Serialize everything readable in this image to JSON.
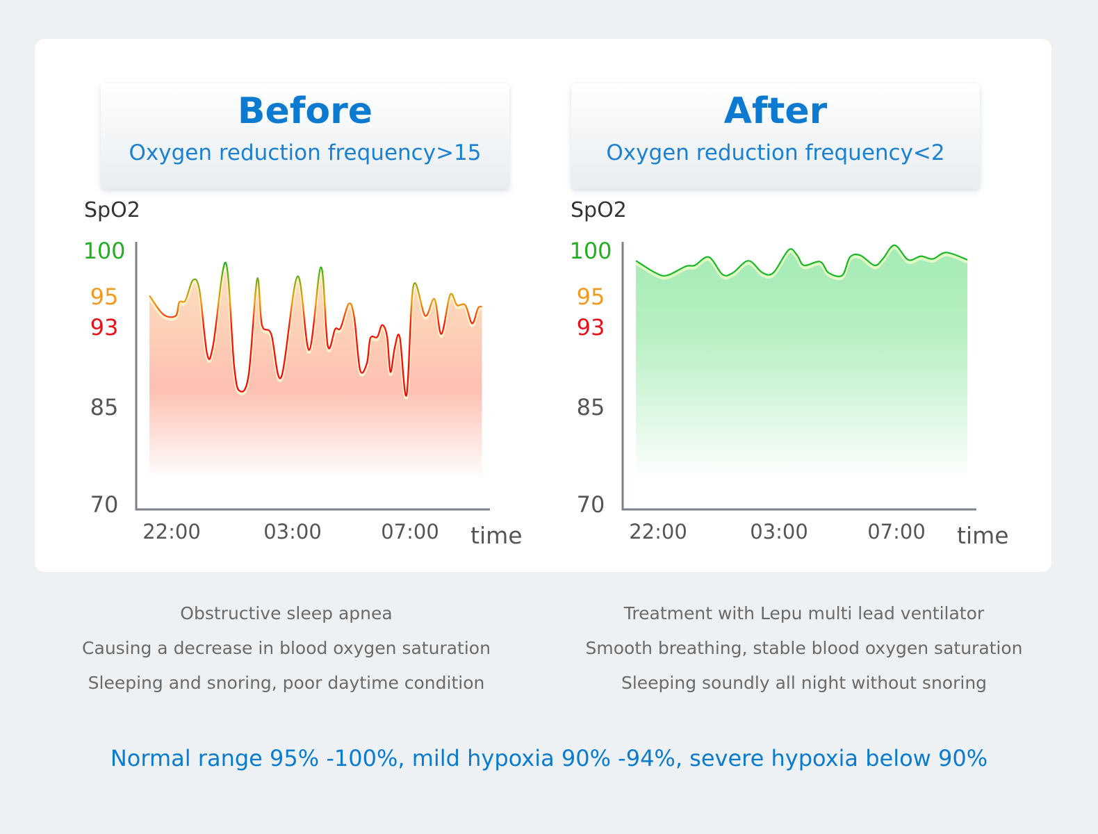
{
  "colors": {
    "accent": "#0b7ad0",
    "normal": "#22b022",
    "mild": "#f39a1e",
    "severe": "#e8111a",
    "axis": "#7c8189"
  },
  "descriptions": {
    "before": [
      "Obstructive sleep apnea",
      "Causing a decrease in blood oxygen saturation",
      "Sleeping and snoring, poor daytime condition"
    ],
    "after": [
      "Treatment with Lepu multi lead ventilator",
      "Smooth breathing, stable blood oxygen saturation",
      "Sleeping soundly all night without snoring"
    ]
  },
  "footnote": "Normal range 95% -100%, mild hypoxia 90% -94%, severe hypoxia below 90%",
  "chart_data": [
    {
      "type": "area",
      "title": "Before",
      "subtitle": "Oxygen reduction frequency>15",
      "ylabel": "SpO2",
      "xlabel": "time",
      "yticks": [
        100,
        95,
        93,
        85,
        70
      ],
      "ytick_colors": [
        "#22b022",
        "#f39a1e",
        "#e8111a",
        "#555555",
        "#555555"
      ],
      "ylim": [
        70,
        100
      ],
      "xticks": [
        "22:00",
        "03:00",
        "07:00"
      ],
      "grid": false,
      "series": [
        {
          "color": "gradient green-orange-red",
          "points": [
            [
              "21:05",
              95.2
            ],
            [
              "21:39",
              93.9
            ],
            [
              "22:10",
              93.8
            ],
            [
              "22:19",
              94.7
            ],
            [
              "22:34",
              94.8
            ],
            [
              "22:53",
              96.9
            ],
            [
              "23:09",
              95.8
            ],
            [
              "23:28",
              90.4
            ],
            [
              "23:43",
              91.3
            ],
            [
              "00:14",
              98.8
            ],
            [
              "00:35",
              89.2
            ],
            [
              "00:49",
              86.7
            ],
            [
              "01:11",
              88.3
            ],
            [
              "01:32",
              97.0
            ],
            [
              "01:44",
              93.2
            ],
            [
              "02:07",
              92.4
            ],
            [
              "02:32",
              88.1
            ],
            [
              "03:10",
              97.3
            ],
            [
              "03:34",
              90.8
            ],
            [
              "03:58",
              98.3
            ],
            [
              "04:12",
              91.2
            ],
            [
              "04:27",
              92.9
            ],
            [
              "04:38",
              93.0
            ],
            [
              "04:55",
              94.6
            ],
            [
              "05:06",
              93.7
            ],
            [
              "05:18",
              88.8
            ],
            [
              "05:32",
              89.5
            ],
            [
              "05:39",
              92.0
            ],
            [
              "05:53",
              92.1
            ],
            [
              "06:03",
              93.2
            ],
            [
              "06:13",
              92.2
            ],
            [
              "06:20",
              88.6
            ],
            [
              "06:29",
              91.1
            ],
            [
              "06:39",
              92.1
            ],
            [
              "06:53",
              86.3
            ],
            [
              "07:07",
              96.3
            ],
            [
              "07:31",
              93.8
            ],
            [
              "07:50",
              94.9
            ],
            [
              "08:04",
              92.4
            ],
            [
              "08:22",
              95.3
            ],
            [
              "08:36",
              94.5
            ],
            [
              "08:53",
              94.5
            ],
            [
              "09:07",
              93.3
            ],
            [
              "09:19",
              94.3
            ],
            [
              "09:27",
              94.4
            ]
          ]
        }
      ]
    },
    {
      "type": "area",
      "title": "After",
      "subtitle": "Oxygen reduction frequency<2",
      "ylabel": "SpO2",
      "xlabel": "time",
      "yticks": [
        100,
        95,
        93,
        85,
        70
      ],
      "ytick_colors": [
        "#22b022",
        "#f39a1e",
        "#e8111a",
        "#555555",
        "#555555"
      ],
      "ylim": [
        70,
        100
      ],
      "xticks": [
        "22:00",
        "03:00",
        "07:00"
      ],
      "grid": false,
      "series": [
        {
          "color": "#17b825",
          "points": [
            [
              "21:05",
              99.0
            ],
            [
              "21:53",
              97.7
            ],
            [
              "22:22",
              97.4
            ],
            [
              "23:09",
              98.4
            ],
            [
              "23:31",
              98.5
            ],
            [
              "00:06",
              99.4
            ],
            [
              "00:40",
              97.5
            ],
            [
              "01:06",
              97.7
            ],
            [
              "01:44",
              99.0
            ],
            [
              "02:19",
              97.7
            ],
            [
              "02:46",
              97.7
            ],
            [
              "03:20",
              100.2
            ],
            [
              "03:37",
              99.6
            ],
            [
              "03:51",
              98.5
            ],
            [
              "04:24",
              98.9
            ],
            [
              "04:41",
              97.7
            ],
            [
              "05:09",
              97.4
            ],
            [
              "05:25",
              99.4
            ],
            [
              "05:46",
              99.6
            ],
            [
              "06:15",
              98.5
            ],
            [
              "06:32",
              99.2
            ],
            [
              "06:56",
              100.7
            ],
            [
              "07:24",
              99.1
            ],
            [
              "07:50",
              99.5
            ],
            [
              "08:14",
              99.2
            ],
            [
              "08:42",
              99.9
            ],
            [
              "09:25",
              99.1
            ]
          ]
        }
      ]
    }
  ]
}
